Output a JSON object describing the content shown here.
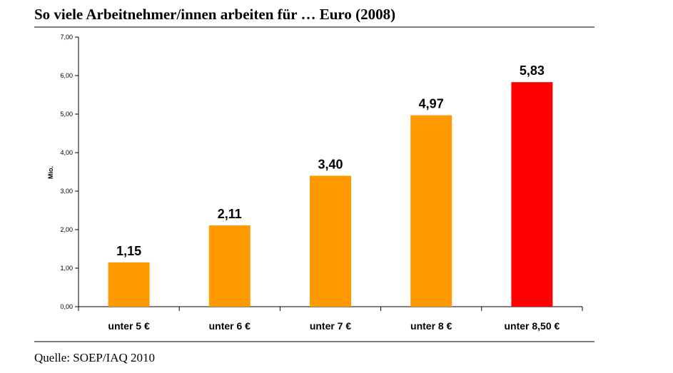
{
  "header": {
    "title": "So viele Arbeitnehmer/innen arbeiten für … Euro (2008)"
  },
  "footer": {
    "source": "Quelle: SOEP/IAQ 2010"
  },
  "chart_data": {
    "type": "bar",
    "categories": [
      "unter 5 €",
      "unter 6 €",
      "unter 7 €",
      "unter 8 €",
      "unter 8,50 €"
    ],
    "values": [
      1.15,
      2.11,
      3.4,
      4.97,
      5.83
    ],
    "value_labels": [
      "1,15",
      "2,11",
      "3,40",
      "4,97",
      "5,83"
    ],
    "bar_colors": [
      "#ff9900",
      "#ff9900",
      "#ff9900",
      "#ff9900",
      "#ff0000"
    ],
    "ylabel": "Mio.",
    "ylim": [
      0,
      7
    ],
    "yticks": [
      0,
      1,
      2,
      3,
      4,
      5,
      6,
      7
    ],
    "ytick_labels": [
      "0,00",
      "1,00",
      "2,00",
      "3,00",
      "4,00",
      "5,00",
      "6,00",
      "7,00"
    ],
    "grid": false,
    "legend": "none"
  }
}
